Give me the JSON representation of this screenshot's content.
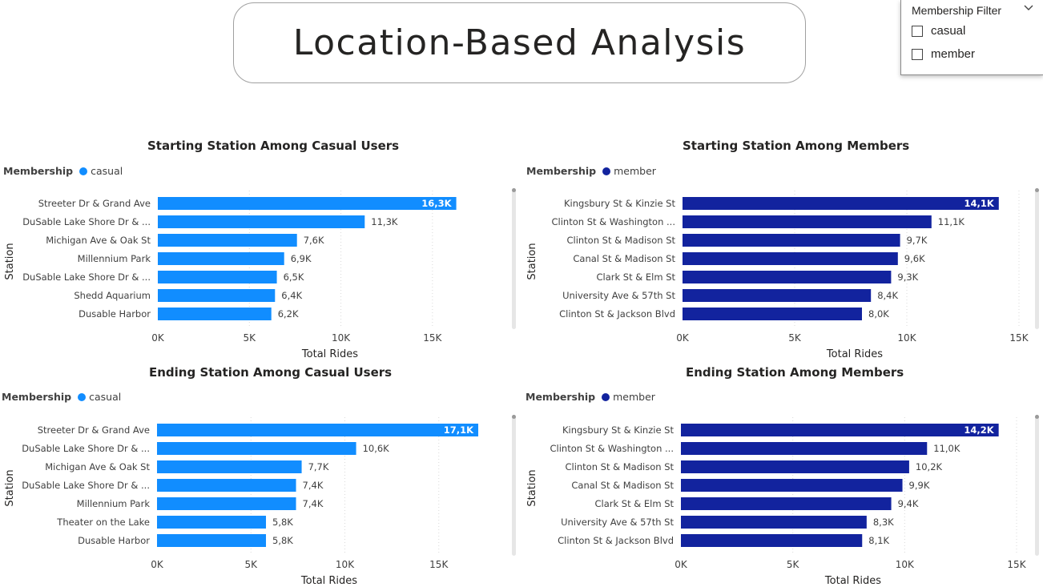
{
  "page": {
    "title": "Location-Based Analysis"
  },
  "slicer": {
    "header": "Membership Filter",
    "options": [
      {
        "label": "casual",
        "checked": false
      },
      {
        "label": "member",
        "checked": false
      }
    ]
  },
  "colors": {
    "casual": "#118dff",
    "member": "#12239e"
  },
  "icons": {
    "slicer_toggle": "chevron-down-icon",
    "checkbox": "checkbox-icon"
  },
  "chart_data": [
    {
      "type": "bar",
      "title": "Starting Station Among Casual Users",
      "legend_title": "Membership",
      "series": [
        {
          "name": "casual",
          "values": [
            16.3,
            11.3,
            7.6,
            6.9,
            6.5,
            6.4,
            6.2
          ]
        }
      ],
      "categories": [
        "Streeter Dr & Grand Ave",
        "DuSable Lake Shore Dr & ...",
        "Michigan Ave & Oak St",
        "Millennium Park",
        "DuSable Lake Shore Dr & ...",
        "Shedd Aquarium",
        "Dusable Harbor"
      ],
      "value_labels": [
        "16,3K",
        "11,3K",
        "7,6K",
        "6,9K",
        "6,5K",
        "6,4K",
        "6,2K"
      ],
      "xticks": [
        "0K",
        "5K",
        "10K",
        "15K"
      ],
      "xlabel": "Total Rides",
      "ylabel": "Station",
      "xlim": [
        0,
        17.5
      ],
      "color": "#118dff"
    },
    {
      "type": "bar",
      "title": "Starting Station Among Members",
      "legend_title": "Membership",
      "series": [
        {
          "name": "member",
          "values": [
            14.1,
            11.1,
            9.7,
            9.6,
            9.3,
            8.4,
            8.0
          ]
        }
      ],
      "categories": [
        "Kingsbury St & Kinzie St",
        "Clinton St & Washington ...",
        "Clinton St & Madison St",
        "Canal St & Madison St",
        "Clark St & Elm St",
        "University Ave & 57th St",
        "Clinton St & Jackson Blvd"
      ],
      "value_labels": [
        "14,1K",
        "11,1K",
        "9,7K",
        "9,6K",
        "9,3K",
        "8,4K",
        "8,0K"
      ],
      "xticks": [
        "0K",
        "5K",
        "10K",
        "15K"
      ],
      "xlabel": "Total Rides",
      "ylabel": "Station",
      "xlim": [
        0,
        15
      ],
      "color": "#12239e"
    },
    {
      "type": "bar",
      "title": "Ending Station Among Casual Users",
      "legend_title": "Membership",
      "series": [
        {
          "name": "casual",
          "values": [
            17.1,
            10.6,
            7.7,
            7.4,
            7.4,
            5.8,
            5.8
          ]
        }
      ],
      "categories": [
        "Streeter Dr & Grand Ave",
        "DuSable Lake Shore Dr & ...",
        "Michigan Ave & Oak St",
        "DuSable Lake Shore Dr & ...",
        "Millennium Park",
        "Theater on the Lake",
        "Dusable Harbor"
      ],
      "value_labels": [
        "17,1K",
        "10,6K",
        "7,7K",
        "7,4K",
        "7,4K",
        "5,8K",
        "5,8K"
      ],
      "xticks": [
        "0K",
        "5K",
        "10K",
        "15K"
      ],
      "xlabel": "Total Rides",
      "ylabel": "Station",
      "xlim": [
        0,
        17.1
      ],
      "color": "#118dff"
    },
    {
      "type": "bar",
      "title": "Ending Station Among Members",
      "legend_title": "Membership",
      "series": [
        {
          "name": "member",
          "values": [
            14.2,
            11.0,
            10.2,
            9.9,
            9.4,
            8.3,
            8.1
          ]
        }
      ],
      "categories": [
        "Kingsbury St & Kinzie St",
        "Clinton St & Washington ...",
        "Clinton St & Madison St",
        "Canal St & Madison St",
        "Clark St & Elm St",
        "University Ave & 57th St",
        "Clinton St & Jackson Blvd"
      ],
      "value_labels": [
        "14,2K",
        "11,0K",
        "10,2K",
        "9,9K",
        "9,4K",
        "8,3K",
        "8,1K"
      ],
      "xticks": [
        "0K",
        "5K",
        "10K",
        "15K"
      ],
      "xlabel": "Total Rides",
      "ylabel": "Station",
      "xlim": [
        0,
        15
      ],
      "color": "#12239e"
    }
  ]
}
